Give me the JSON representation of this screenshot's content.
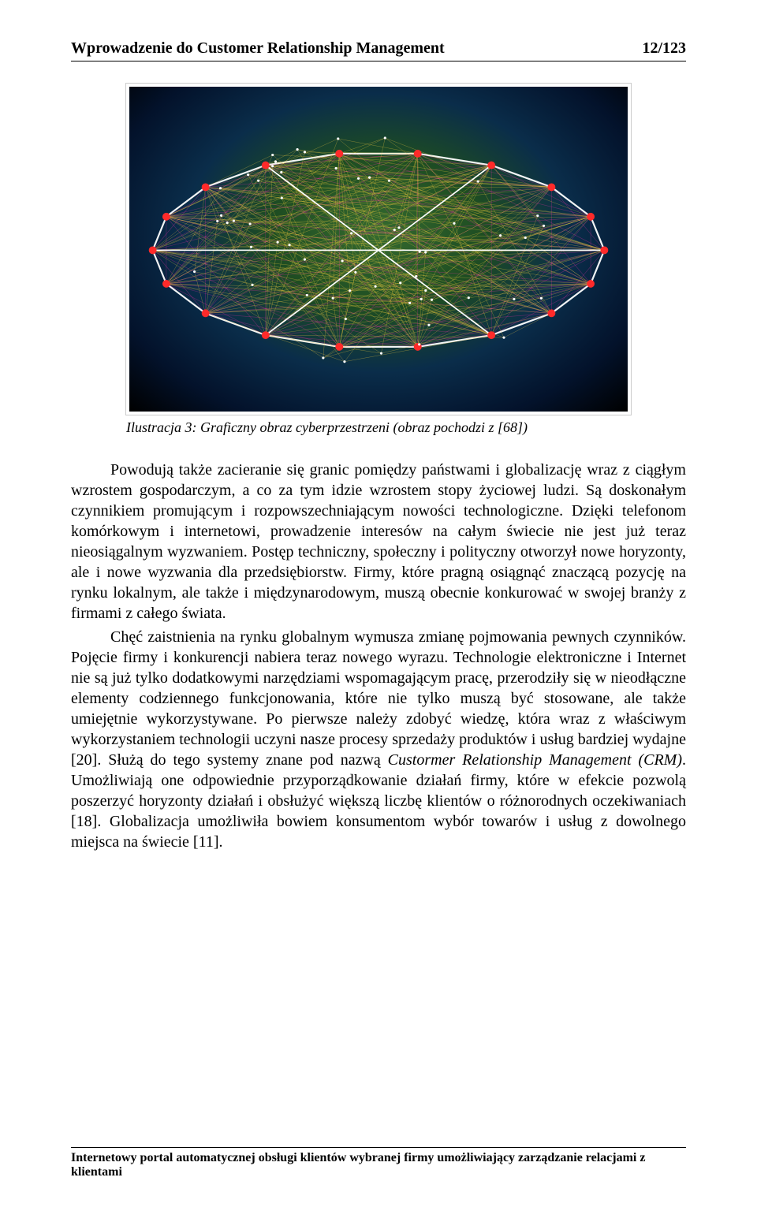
{
  "header": {
    "title": "Wprowadzenie do Customer Relationship Management",
    "page": "12/123"
  },
  "figure": {
    "caption": "Ilustracja 3: Graficzny obraz cyberprzestrzeni (obraz pochodzi z [68])",
    "bg_sky": "#03122b",
    "bg_ocean": "#0a2d4a",
    "bg_land": "#2f6b2e",
    "node_color": "#ff2a2a",
    "line_yellow": "#ffd23f",
    "line_magenta": "#ff2fae",
    "line_white": "#ffffff"
  },
  "paragraphs": {
    "p1": "Powodują także zacieranie się granic pomiędzy państwami i globalizację wraz z ciągłym wzrostem gospodarczym, a co za tym idzie wzrostem stopy życiowej ludzi. Są doskonałym czynnikiem promującym i rozpowszechniającym nowości technologiczne. Dzięki telefonom komórkowym i internetowi, prowadzenie interesów na całym świecie nie jest już teraz nieosiągalnym wyzwaniem. Postęp techniczny, społeczny i polityczny otworzył nowe horyzonty, ale i nowe wyzwania dla przedsiębiorstw. Firmy, które pragną osiągnąć znaczącą pozycję na rynku lokalnym, ale także i międzynarodowym, muszą obecnie konkurować w swojej branży z firmami z całego świata.",
    "p2_part1": "Chęć zaistnienia na rynku globalnym wymusza zmianę pojmowania pewnych czynników. Pojęcie firmy i konkurencji nabiera teraz nowego wyrazu. Technologie elektroniczne i Internet nie są już tylko dodatkowymi narzędziami wspomagającym pracę, przerodziły się w nieodłączne elementy codziennego funkcjonowania, które nie tylko muszą być stosowane, ale także umiejętnie wykorzystywane. Po pierwsze należy zdobyć wiedzę, która wraz z właściwym wykorzystaniem technologii uczyni nasze procesy sprzedaży produktów i usług bardziej wydajne [20]. Służą do tego systemy znane pod nazwą ",
    "p2_em": "Custormer Relationship Management (CRM)",
    "p2_part2": ". Umożliwiają one odpowiednie przyporządkowanie działań firmy, które w efekcie pozwolą poszerzyć horyzonty działań i obsłużyć większą liczbę klientów o różnorodnych oczekiwaniach [18]. Globalizacja umożliwiła bowiem konsumentom wybór towarów i usług z dowolnego miejsca na świecie [11]."
  },
  "footer": {
    "text": "Internetowy portal automatycznej obsługi klientów wybranej firmy umożliwiający zarządzanie relacjami z klientami"
  }
}
